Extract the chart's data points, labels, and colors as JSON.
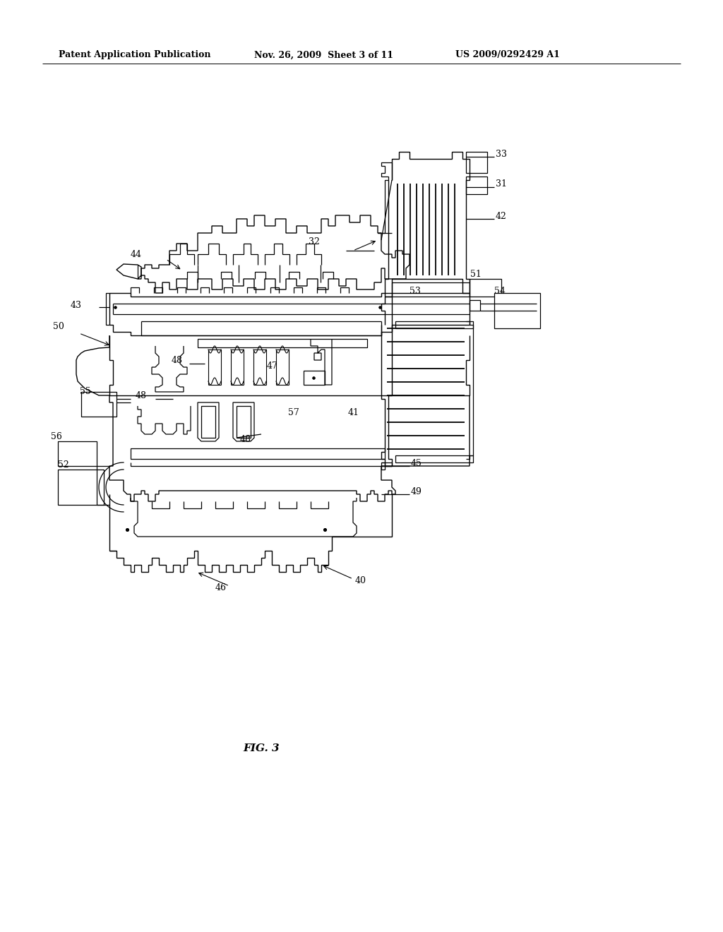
{
  "header_left": "Patent Application Publication",
  "header_mid": "Nov. 26, 2009  Sheet 3 of 11",
  "header_right": "US 2009/0292429 A1",
  "footer_label": "FIG. 3",
  "background": "#ffffff",
  "line_color": "#000000",
  "header_fontsize": 9,
  "footer_fontsize": 11,
  "lw": 0.9
}
